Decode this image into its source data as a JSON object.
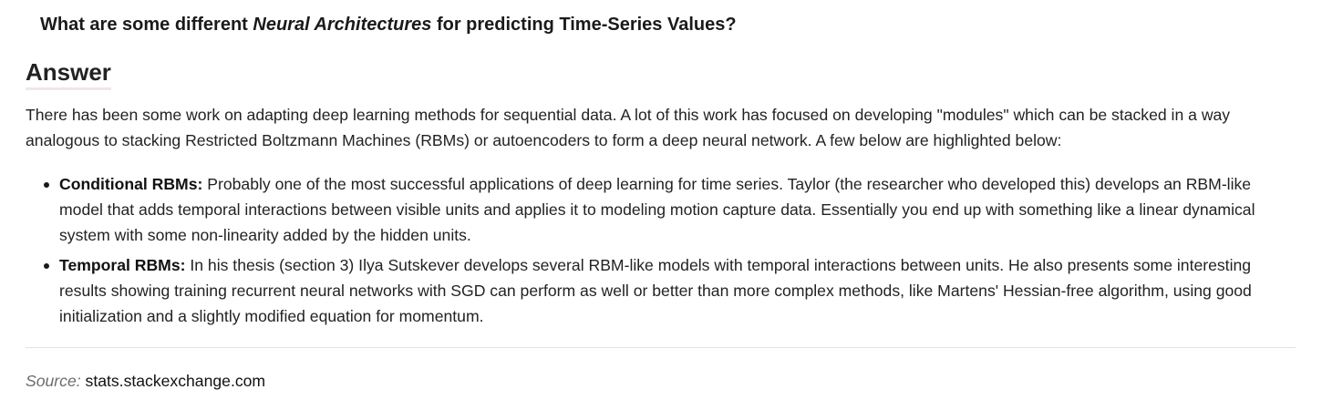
{
  "question": {
    "prefix": "What are some different ",
    "emphasis": "Neural Architectures",
    "suffix": " for predicting Time-Series Values?"
  },
  "answer": {
    "heading": "Answer",
    "intro": "There has been some work on adapting deep learning methods for sequential data. A lot of this work has focused on developing \"modules\" which can be stacked in a way analogous to stacking Restricted Boltzmann Machines (RBMs) or autoencoders to form a deep neural network. A few below are highlighted below:",
    "items": [
      {
        "title": "Conditional RBMs:",
        "text": " Probably one of the most successful applications of deep learning for time series. Taylor (the researcher who developed this) develops an RBM-like model that adds temporal interactions between visible units and applies it to modeling motion capture data. Essentially you end up with something like a linear dynamical system with some non-linearity added by the hidden units."
      },
      {
        "title": "Temporal RBMs:",
        "text": " In his thesis (section 3) Ilya Sutskever develops several RBM-like models with temporal interactions between units. He also presents some interesting results showing training recurrent neural networks with SGD can perform as well or better than more complex methods, like Martens' Hessian-free algorithm, using good initialization and a slightly modified equation for momentum."
      }
    ]
  },
  "source": {
    "label": "Source:",
    "site": "stats.stackexchange.com"
  },
  "colors": {
    "text": "#222222",
    "heading_underline": "#f4e4ec",
    "source_label": "#6c6c6c",
    "divider": "#e3e3e3"
  }
}
